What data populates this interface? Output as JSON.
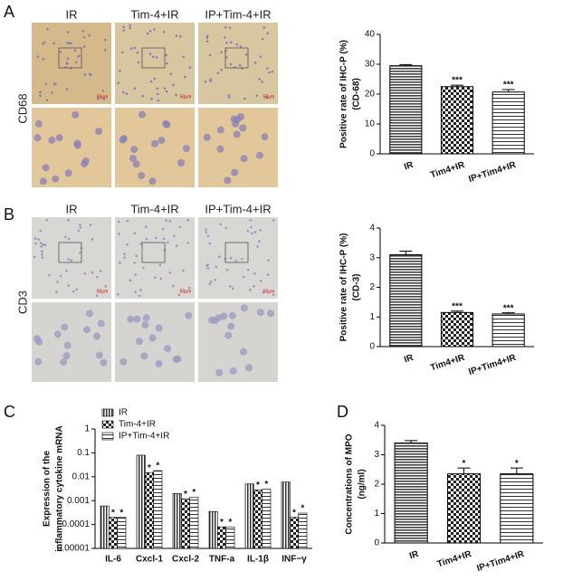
{
  "figure": {
    "panels": [
      "A",
      "B",
      "C",
      "D"
    ],
    "image_headers": [
      "IR",
      "Tim-4+IR",
      "IP+Tim-4+IR"
    ],
    "a_stain": "CD68",
    "b_stain": "CD3",
    "scale_bar": "50μm"
  },
  "chart_data": [
    {
      "type": "bar",
      "ylabel": [
        "Positive rate of IHC-P (%)",
        "(CD-68)"
      ],
      "categories": [
        "IR",
        "Tim4+IR",
        "IP+Tim4+IR"
      ],
      "values": [
        29.5,
        22.5,
        20.7
      ],
      "errors": [
        0.4,
        0.5,
        0.8
      ],
      "annotations": [
        null,
        "***",
        "***"
      ],
      "ylim": [
        0,
        40
      ],
      "yticks": [
        0,
        10,
        20,
        30,
        40
      ]
    },
    {
      "type": "bar",
      "ylabel": [
        "Positive rate of IHC-P (%)",
        "(CD-3)"
      ],
      "categories": [
        "IR",
        "Tim4+IR",
        "IP+Tim4+IR"
      ],
      "values": [
        3.1,
        1.15,
        1.1
      ],
      "errors": [
        0.12,
        0.05,
        0.04
      ],
      "annotations": [
        null,
        "***",
        "***"
      ],
      "ylim": [
        0,
        4
      ],
      "yticks": [
        0,
        1,
        2,
        3,
        4
      ]
    },
    {
      "type": "grouped-bar",
      "yscale": "log",
      "ylabel": [
        "Expression of  the",
        "inflammatory cytokine mRNA"
      ],
      "categories": [
        "IL-6",
        "Cxcl-1",
        "Cxcl-2",
        "TNF-a",
        "IL-1β",
        "INF−γ"
      ],
      "series": [
        {
          "name": "IR",
          "values": [
            0.0006,
            0.08,
            0.002,
            0.00035,
            0.005,
            0.006
          ],
          "annotations": [
            null,
            null,
            null,
            null,
            null,
            null
          ]
        },
        {
          "name": "Tim-4+IR",
          "values": [
            0.0002,
            0.015,
            0.0012,
            8e-05,
            0.0028,
            0.0002
          ],
          "annotations": [
            "*",
            "*",
            "*",
            "*",
            "*",
            "*"
          ]
        },
        {
          "name": "IP+Tim-4+IR",
          "values": [
            0.0002,
            0.018,
            0.0014,
            8e-05,
            0.003,
            0.0003
          ],
          "annotations": [
            "*",
            "*",
            "*",
            "*",
            "*",
            "*"
          ]
        }
      ],
      "ylim": [
        1e-05,
        1
      ],
      "yticks": [
        1e-05,
        0.0001,
        0.001,
        0.01,
        0.1,
        1
      ]
    },
    {
      "type": "bar",
      "ylabel": [
        "Concentrations of MPO",
        "(ng/ml)"
      ],
      "categories": [
        "IR",
        "Tim4+IR",
        "IP+Tim4+IR"
      ],
      "values": [
        3.4,
        2.35,
        2.35
      ],
      "errors": [
        0.08,
        0.2,
        0.2
      ],
      "annotations": [
        null,
        "*",
        "*"
      ],
      "ylim": [
        0,
        4
      ],
      "yticks": [
        0,
        1,
        2,
        3,
        4
      ]
    }
  ]
}
